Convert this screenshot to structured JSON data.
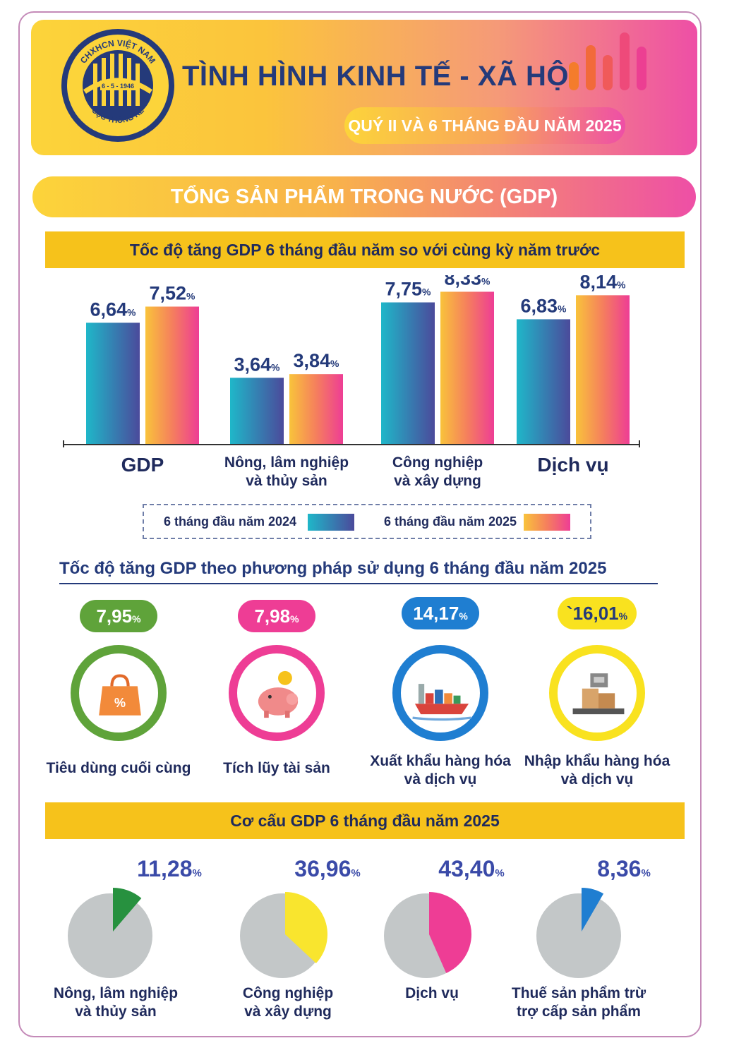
{
  "header": {
    "title": "TÌNH HÌNH KINH TẾ - XÃ HỘI",
    "subtitle": "QUÝ II VÀ 6 THÁNG ĐẦU NĂM 2025",
    "seal_text_top": "CHXHCN VIỆT NAM",
    "seal_text_bottom": "CỤC THỐNG KÊ",
    "seal_date": "6 - 5 - 1946"
  },
  "section_title": "TỔNG SẢN PHẨM TRONG NƯỚC (GDP)",
  "colors": {
    "navy": "#1f2a5c",
    "band": "#f6c21b",
    "green": "#5fa33a",
    "pink": "#ee3d95",
    "blue": "#1f7ed1",
    "yellow": "#f9e21f"
  },
  "chart_data": [
    {
      "type": "bar",
      "title": "Tốc độ tăng GDP 6 tháng đầu năm so với cùng kỳ năm trước",
      "categories": [
        "GDP",
        "Nông, lâm nghiệp\nvà thủy sản",
        "Công nghiệp\nvà xây dựng",
        "Dịch vụ"
      ],
      "series": [
        {
          "name": "6 tháng đầu năm 2024",
          "values": [
            6.64,
            3.64,
            7.75,
            6.83
          ],
          "labels": [
            "6,64",
            "3,64",
            "7,75",
            "6,83"
          ]
        },
        {
          "name": "6 tháng đầu năm 2025",
          "values": [
            7.52,
            3.84,
            8.33,
            8.14
          ],
          "labels": [
            "7,52",
            "3,84",
            "8,33",
            "8,14"
          ]
        }
      ],
      "unit": "%",
      "legend": "bottom"
    },
    {
      "type": "table",
      "title": "Tốc độ tăng GDP theo phương pháp sử dụng 6 tháng đầu năm 2025",
      "items": [
        {
          "label": "Tiêu dùng cuối cùng",
          "value": 7.95,
          "display": "7,95",
          "color": "#5fa33a",
          "icon": "shopping-bag-icon"
        },
        {
          "label": "Tích lũy tài sản",
          "value": 7.98,
          "display": "7,98",
          "color": "#ee3d95",
          "icon": "piggy-bank-icon"
        },
        {
          "label": "Xuất khẩu hàng hóa\nvà dịch vụ",
          "value": 14.17,
          "display": "14,17",
          "color": "#1f7ed1",
          "icon": "cargo-ship-icon"
        },
        {
          "label": "Nhập khẩu hàng hóa\nvà dịch vụ",
          "value": 16.01,
          "display": "`16,01",
          "color": "#f9e21f",
          "icon": "warehouse-scale-icon"
        }
      ],
      "unit": "%"
    },
    {
      "type": "pie",
      "title": "Cơ cấu GDP 6 tháng đầu năm 2025",
      "items": [
        {
          "label": "Nông, lâm nghiệp\nvà thủy sản",
          "value": 11.28,
          "display": "11,28",
          "color": "#27913f"
        },
        {
          "label": "Công nghiệp\nvà xây dựng",
          "value": 36.96,
          "display": "36,96",
          "color": "#f9e52e"
        },
        {
          "label": "Dịch vụ",
          "value": 43.4,
          "display": "43,40",
          "color": "#ee3d95"
        },
        {
          "label": "Thuế sản phẩm trừ\ntrợ cấp sản phẩm",
          "value": 8.36,
          "display": "8,36",
          "color": "#1f7ed1"
        }
      ],
      "unit": "%"
    }
  ]
}
